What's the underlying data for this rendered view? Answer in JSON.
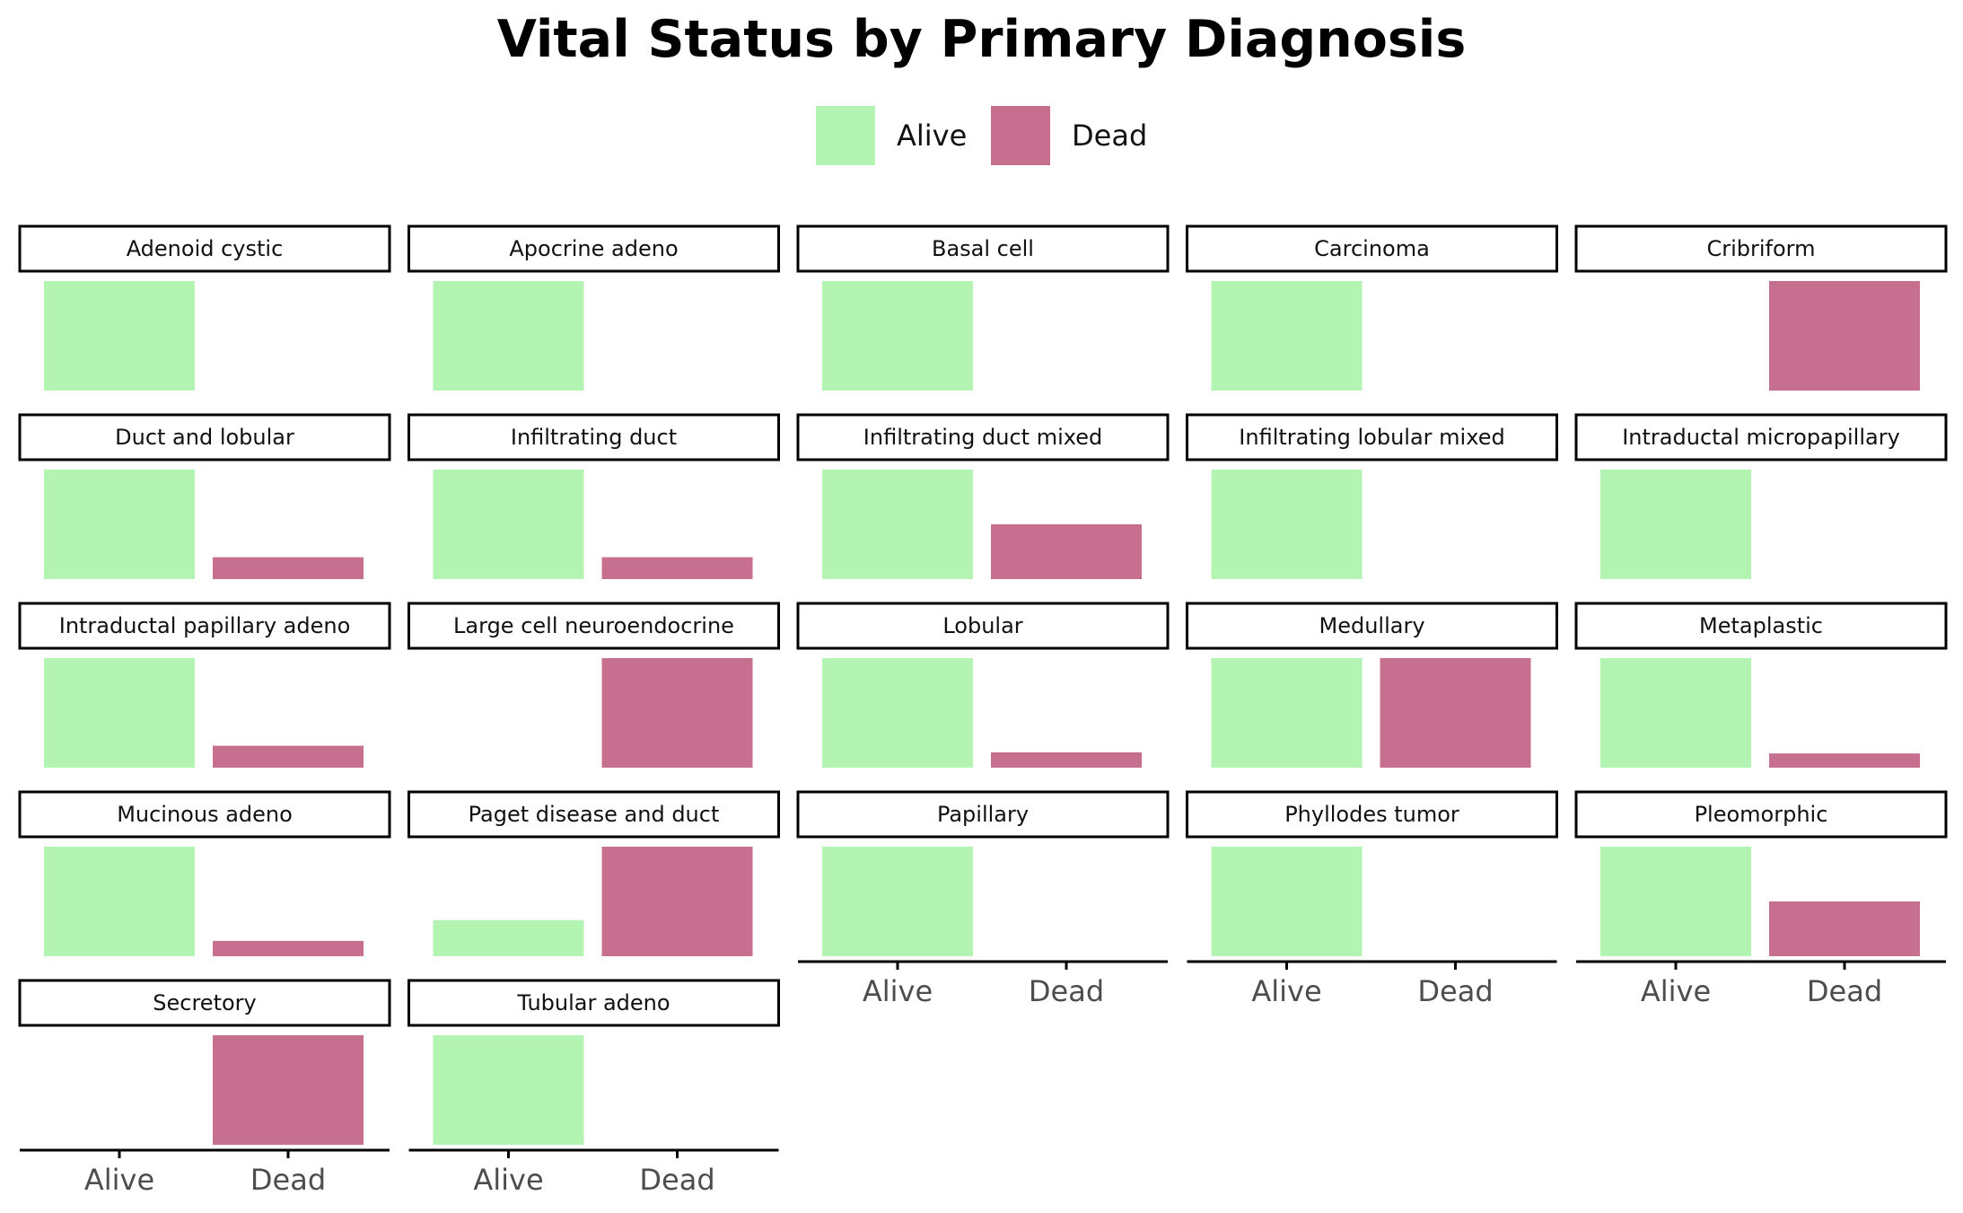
{
  "title": "Vital Status by Primary Diagnosis",
  "legend": {
    "items": [
      {
        "label": "Alive",
        "color": "#b3f4b3"
      },
      {
        "label": "Dead",
        "color": "#c76f8e"
      }
    ]
  },
  "chart_data": {
    "type": "bar",
    "title": "Vital Status by Primary Diagnosis",
    "xlabel": "",
    "ylabel": "",
    "categories": [
      "Alive",
      "Dead"
    ],
    "series_colors": {
      "Alive": "#b3f4b3",
      "Dead": "#c76f8e"
    },
    "scales": "free_y",
    "grid": false,
    "legend_position": "top",
    "facets": [
      {
        "name": "Adenoid cystic",
        "values": [
          1.0,
          0.0
        ]
      },
      {
        "name": "Apocrine adeno",
        "values": [
          1.0,
          0.0
        ]
      },
      {
        "name": "Basal cell",
        "values": [
          1.0,
          0.0
        ]
      },
      {
        "name": "Carcinoma",
        "values": [
          1.0,
          0.0
        ]
      },
      {
        "name": "Cribriform",
        "values": [
          0.0,
          1.0
        ]
      },
      {
        "name": "Duct and lobular",
        "values": [
          1.0,
          0.2
        ]
      },
      {
        "name": "Infiltrating duct",
        "values": [
          1.0,
          0.2
        ]
      },
      {
        "name": "Infiltrating duct mixed",
        "values": [
          1.0,
          0.5
        ]
      },
      {
        "name": "Infiltrating lobular mixed",
        "values": [
          1.0,
          0.0
        ]
      },
      {
        "name": "Intraductal micropapillary",
        "values": [
          1.0,
          0.0
        ]
      },
      {
        "name": "Intraductal papillary adeno",
        "values": [
          1.0,
          0.2
        ]
      },
      {
        "name": "Large cell neuroendocrine",
        "values": [
          0.0,
          1.0
        ]
      },
      {
        "name": "Lobular",
        "values": [
          1.0,
          0.14
        ]
      },
      {
        "name": "Medullary",
        "values": [
          1.0,
          1.0
        ]
      },
      {
        "name": "Metaplastic",
        "values": [
          1.0,
          0.13
        ]
      },
      {
        "name": "Mucinous adeno",
        "values": [
          1.0,
          0.14
        ]
      },
      {
        "name": "Paget disease and duct",
        "values": [
          0.33,
          1.0
        ]
      },
      {
        "name": "Papillary",
        "values": [
          1.0,
          0.0
        ]
      },
      {
        "name": "Phyllodes tumor",
        "values": [
          1.0,
          0.0
        ]
      },
      {
        "name": "Pleomorphic",
        "values": [
          1.0,
          0.5
        ]
      },
      {
        "name": "Secretory",
        "values": [
          0.0,
          1.0
        ]
      },
      {
        "name": "Tubular adeno",
        "values": [
          1.0,
          0.0
        ]
      }
    ]
  }
}
